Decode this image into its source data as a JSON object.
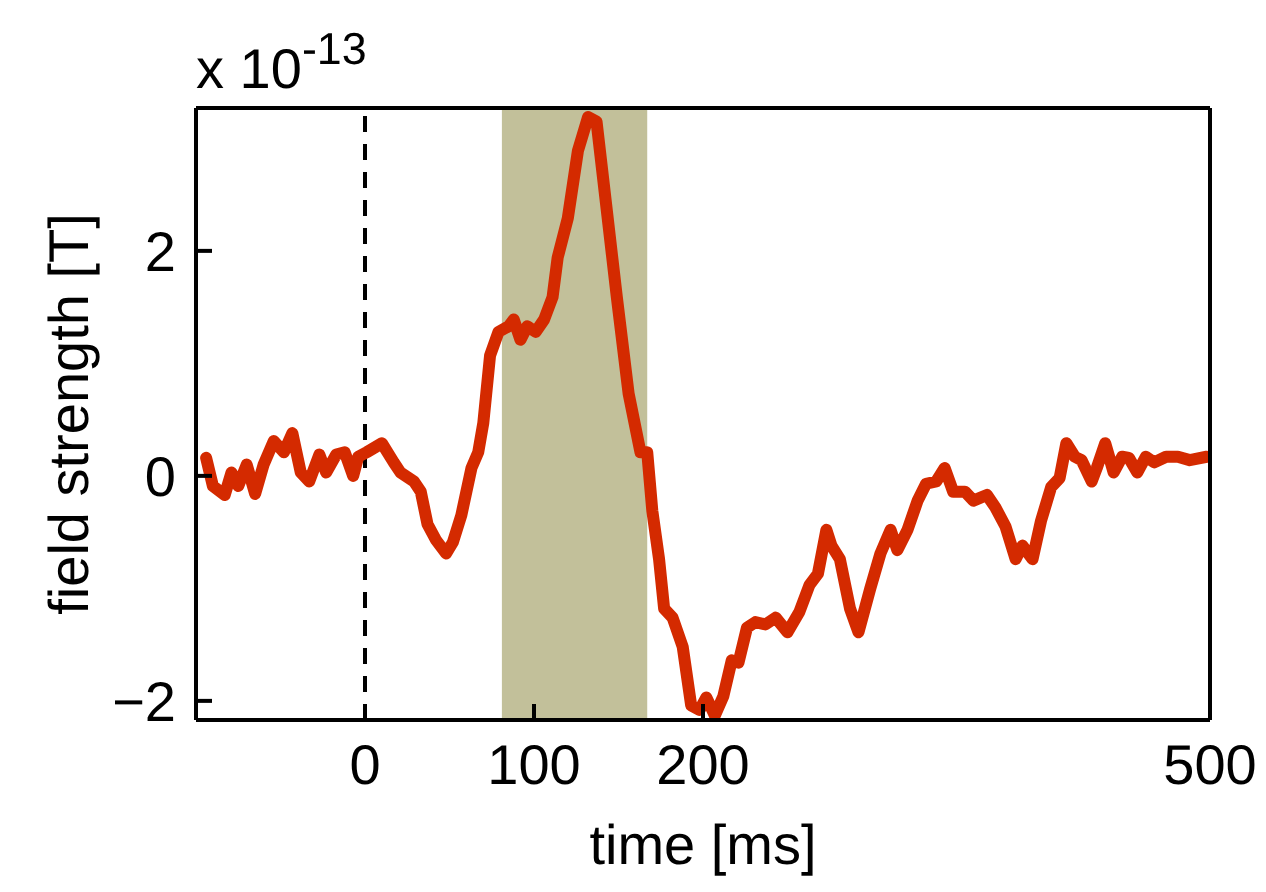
{
  "chart_data": {
    "type": "line",
    "xlabel": "time [ms]",
    "ylabel": "field strength [T]",
    "annotations": [
      "x 10$^{-13}$"
    ],
    "x": [
      -94,
      -90,
      -83,
      -79,
      -75,
      -70,
      -65,
      -60,
      -54,
      -48,
      -43,
      -38,
      -33,
      -27,
      -23,
      -17,
      -12,
      -7,
      -4,
      1,
      10,
      17,
      21,
      29,
      33,
      37,
      42,
      48,
      52,
      57,
      63,
      67,
      70,
      74,
      79,
      85,
      88,
      92,
      96,
      101,
      106,
      111,
      114,
      120,
      126,
      132,
      137,
      143,
      149,
      156,
      163,
      167,
      170,
      174,
      177,
      182,
      188,
      193,
      198,
      202,
      207,
      212,
      217,
      221,
      226,
      231,
      237,
      243,
      250,
      257,
      263,
      268,
      273,
      276,
      281,
      287,
      292,
      299,
      305,
      311,
      315,
      321,
      327,
      332,
      338,
      343,
      348,
      355,
      360,
      368,
      373,
      379,
      385,
      389,
      395,
      400,
      406,
      411,
      415,
      420,
      424,
      430,
      433,
      438,
      443,
      448,
      452,
      457,
      462,
      467,
      474,
      481,
      488,
      498
    ],
    "series": [
      {
        "color": "#d42a00",
        "values": [
          0.16,
          -0.09,
          -0.17,
          0.03,
          -0.09,
          0.1,
          -0.16,
          0.1,
          0.31,
          0.21,
          0.38,
          0.03,
          -0.05,
          0.19,
          0.03,
          0.19,
          0.21,
          0,
          0.17,
          0.21,
          0.29,
          0.12,
          0.03,
          -0.05,
          -0.14,
          -0.43,
          -0.57,
          -0.69,
          -0.59,
          -0.35,
          0.07,
          0.21,
          0.47,
          1.07,
          1.28,
          1.33,
          1.39,
          1.21,
          1.33,
          1.28,
          1.39,
          1.59,
          1.94,
          2.29,
          2.89,
          3.19,
          3.15,
          2.37,
          1.59,
          0.73,
          0.21,
          0.21,
          -0.31,
          -0.74,
          -1.18,
          -1.26,
          -1.52,
          -2.04,
          -2.08,
          -1.97,
          -2.13,
          -1.96,
          -1.64,
          -1.66,
          -1.35,
          -1.3,
          -1.32,
          -1.26,
          -1.39,
          -1.21,
          -0.97,
          -0.87,
          -0.48,
          -0.62,
          -0.74,
          -1.18,
          -1.39,
          -1.0,
          -0.69,
          -0.48,
          -0.66,
          -0.48,
          -0.22,
          -0.07,
          -0.05,
          0.07,
          -0.14,
          -0.14,
          -0.22,
          -0.17,
          -0.28,
          -0.45,
          -0.74,
          -0.62,
          -0.74,
          -0.4,
          -0.1,
          -0.02,
          0.29,
          0.17,
          0.14,
          -0.05,
          0.07,
          0.29,
          0.03,
          0.17,
          0.16,
          0.03,
          0.17,
          0.12,
          0.17,
          0.17,
          0.14,
          0.17
        ]
      }
    ],
    "xlim": [
      -100,
      500
    ],
    "xticks": [
      0,
      100,
      200,
      500
    ],
    "ylim": [
      -2.17,
      3.27
    ],
    "yticks": [
      -2,
      0,
      2
    ],
    "ref_lines": [
      {
        "axis": "x",
        "value": 0,
        "color": "#000000",
        "line_style": "dashed"
      }
    ],
    "bands": [
      {
        "axis": "x",
        "from": 81,
        "to": 167,
        "color": "#c2c09a"
      }
    ],
    "grid": false,
    "marker": "none",
    "line_style": "solid"
  }
}
